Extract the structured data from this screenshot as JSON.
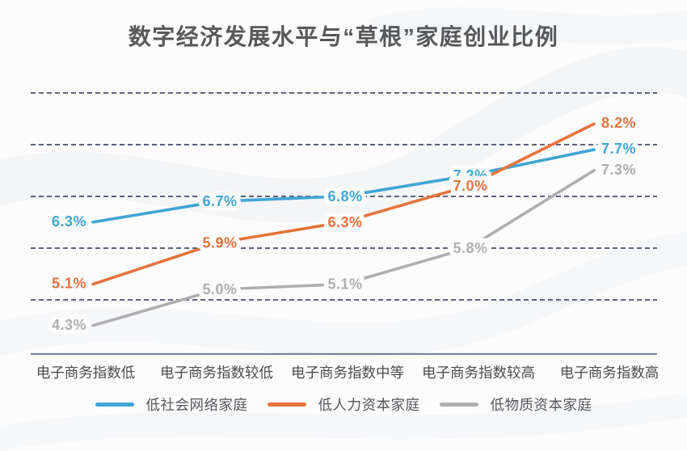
{
  "title": "数字经济发展水平与“草根”家庭创业比例",
  "chart_data": {
    "type": "line",
    "title": "数字经济发展水平与“草根”家庭创业比例",
    "categories": [
      "电子商务指数低",
      "电子商务指数较低",
      "电子商务指数中等",
      "电子商务指数较高",
      "电子商务指数高"
    ],
    "series": [
      {
        "name": "低社会网络家庭",
        "color": "#3FA5D4",
        "values": [
          6.3,
          6.7,
          6.8,
          7.2,
          7.7
        ]
      },
      {
        "name": "低人力资本家庭",
        "color": "#E6733B",
        "values": [
          5.1,
          5.9,
          6.3,
          7.0,
          8.2
        ]
      },
      {
        "name": "低物质资本家庭",
        "color": "#AFAFB1",
        "values": [
          4.3,
          5.0,
          5.1,
          5.8,
          7.3
        ]
      }
    ],
    "data_labels": [
      [
        "6.3%",
        "6.7%",
        "6.8%",
        "7.2%",
        "7.7%"
      ],
      [
        "5.1%",
        "5.9%",
        "6.3%",
        "7.0%",
        "8.2%"
      ],
      [
        "4.3%",
        "5.0%",
        "5.1%",
        "5.8%",
        "7.3%"
      ]
    ],
    "unit": "%",
    "xlabel": "",
    "ylabel": "",
    "ylim": [
      4.0,
      9.0
    ],
    "grid": "horizontal-dashed",
    "legend_position": "bottom"
  },
  "style_colors": {
    "grid_line": "#454F68",
    "axis_line": "#7B85A0",
    "title_text": "#57585A",
    "category_text": "#4B4C4E",
    "legend_text": "#55565A",
    "background": "#FCFCFD"
  }
}
